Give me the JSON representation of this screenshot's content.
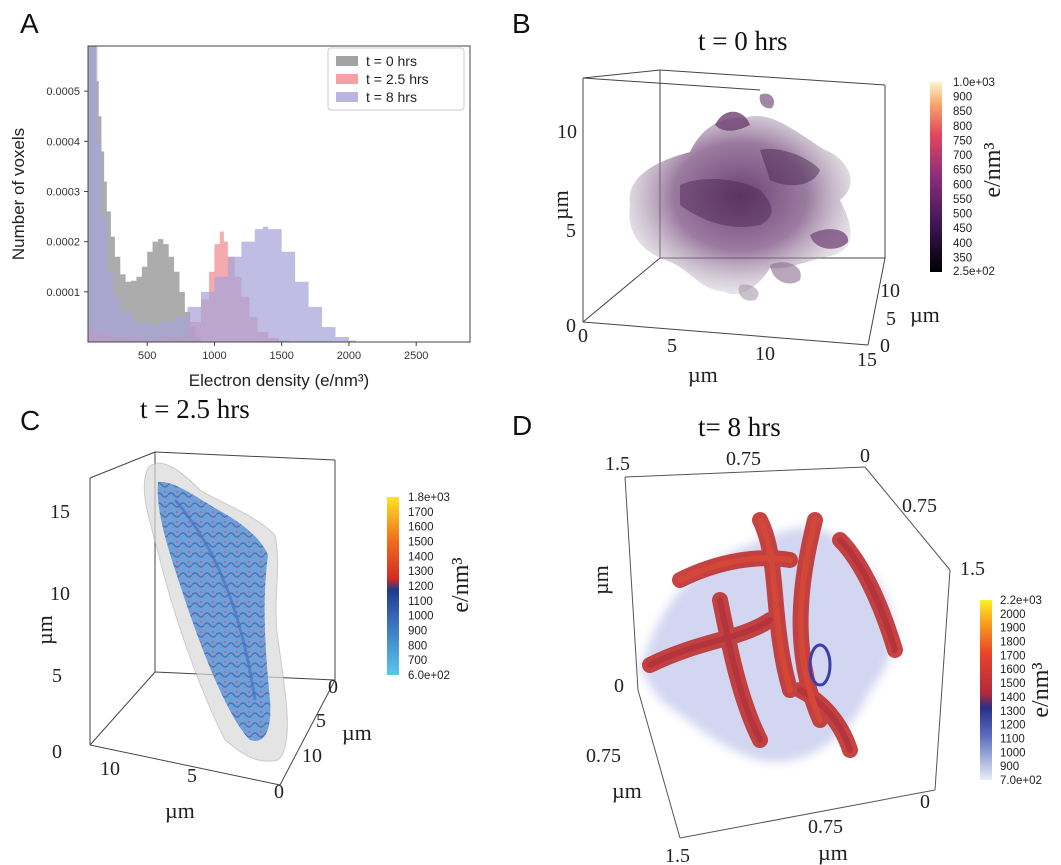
{
  "panels": {
    "A": {
      "letter": "A",
      "chart_data": {
        "type": "area",
        "xlabel": "Electron density (e/nm³)",
        "ylabel": "Number of voxels",
        "xlim": [
          60,
          2900
        ],
        "ylim": [
          0,
          0.00059
        ],
        "xticks": [
          "500",
          "1000",
          "1500",
          "2000",
          "2500"
        ],
        "yticks": [
          "0.0001",
          "0.0002",
          "0.0003",
          "0.0004",
          "0.0005"
        ],
        "grid": false,
        "legend_position": "top-right",
        "series": [
          {
            "name": "t = 0 hrs",
            "color": "#8c8c8c",
            "x": [
              60,
              100,
              120,
              140,
              160,
              180,
              200,
              230,
              260,
              300,
              340,
              380,
              420,
              460,
              500,
              540,
              580,
              620,
              660,
              700,
              740,
              780,
              820,
              860,
              900
            ],
            "y": [
              0.00059,
              0.00059,
              0.00052,
              0.00045,
              0.00038,
              0.00032,
              0.00026,
              0.00021,
              0.00017,
              0.000135,
              0.00012,
              0.000122,
              0.00013,
              0.00015,
              0.00018,
              0.0002,
              0.000205,
              0.000195,
              0.00017,
              0.00014,
              0.0001,
              6e-05,
              3e-05,
              1e-05,
              0
            ]
          },
          {
            "name": "t = 2.5 hrs",
            "color": "#f08a8f",
            "x": [
              60,
              100,
              200,
              400,
              600,
              800,
              900,
              960,
              1000,
              1040,
              1070,
              1100,
              1150,
              1200,
              1260,
              1320,
              1400,
              1480,
              1560,
              1650
            ],
            "y": [
              3e-05,
              2e-05,
              1e-05,
              5e-06,
              1e-05,
              4e-05,
              8.5e-05,
              0.00014,
              0.000195,
              0.00022,
              0.0002,
              0.00017,
              0.00013,
              9e-05,
              5e-05,
              2e-05,
              8e-06,
              3e-06,
              1e-06,
              0
            ]
          },
          {
            "name": "t = 8 hrs",
            "color": "#a6a3d9",
            "x": [
              60,
              100,
              130,
              160,
              200,
              250,
              300,
              400,
              500,
              600,
              700,
              800,
              900,
              1000,
              1100,
              1200,
              1300,
              1360,
              1400,
              1500,
              1600,
              1700,
              1800,
              1900,
              2000,
              2050
            ],
            "y": [
              0.00059,
              0.00059,
              0.0004,
              0.00025,
              0.00014,
              9e-05,
              6e-05,
              4e-05,
              3.5e-05,
              4e-05,
              5e-05,
              7e-05,
              0.0001,
              0.00013,
              0.00017,
              0.0002,
              0.000225,
              0.00023,
              0.000225,
              0.00018,
              0.00012,
              7e-05,
              3e-05,
              1e-05,
              3e-06,
              0
            ]
          }
        ]
      }
    },
    "B": {
      "letter": "B",
      "title": "t = 0 hrs",
      "axis_labels": {
        "vertical": "µm",
        "front": "µm",
        "side": "µm"
      },
      "vertical_ticks": [
        "0",
        "5",
        "10"
      ],
      "front_ticks": [
        "0",
        "5",
        "10",
        "15"
      ],
      "side_ticks": [
        "0",
        "5",
        "10"
      ],
      "colorbar": {
        "unit": "e/nm³",
        "max_label": "1.0e+03",
        "min_label": "2.5e+02",
        "tick_labels": [
          "900",
          "850",
          "800",
          "750",
          "700",
          "650",
          "600",
          "550",
          "500",
          "450",
          "400",
          "350"
        ]
      }
    },
    "C": {
      "letter": "C",
      "title": "t = 2.5 hrs",
      "axis_labels": {
        "vertical": "µm",
        "front": "µm",
        "side": "µm"
      },
      "vertical_ticks": [
        "0",
        "5",
        "10",
        "15"
      ],
      "front_ticks": [
        "10",
        "5"
      ],
      "side_ticks": [
        "0",
        "5",
        "10",
        "0"
      ],
      "colorbar": {
        "unit": "e/nm³",
        "max_label": "1.8e+03",
        "min_label": "6.0e+02",
        "tick_labels": [
          "1700",
          "1600",
          "1500",
          "1400",
          "1300",
          "1200",
          "1100",
          "1000",
          "900",
          "800",
          "700"
        ]
      }
    },
    "D": {
      "letter": "D",
      "title": "t= 8 hrs",
      "axis_labels": {
        "vertical": "µm",
        "left": "µm",
        "bottom": "µm"
      },
      "top_ticks": [
        "1.5",
        "0.75",
        "0"
      ],
      "right_ticks": [
        "0.75",
        "1.5"
      ],
      "left_ticks": [
        "0",
        "0.75"
      ],
      "bottom_ticks": [
        "0",
        "0.75",
        "1.5"
      ],
      "colorbar": {
        "unit": "e/nm³",
        "max_label": "2.2e+03",
        "min_label": "7.0e+02",
        "tick_labels": [
          "2000",
          "1900",
          "1800",
          "1700",
          "1600",
          "1500",
          "1400",
          "1300",
          "1200",
          "1100",
          "1000",
          "900"
        ]
      }
    }
  }
}
